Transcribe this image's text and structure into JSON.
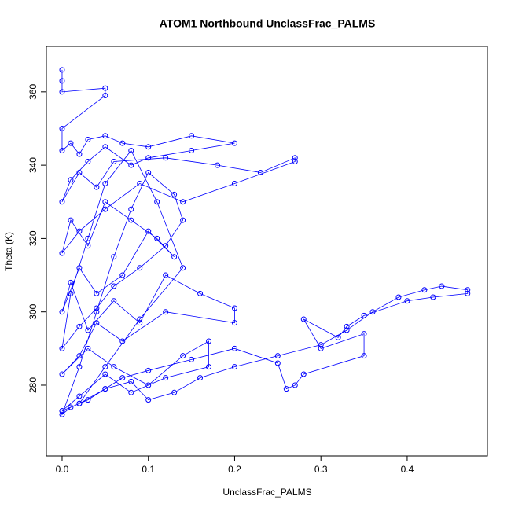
{
  "chart_data": {
    "type": "line",
    "markers": "open-circle",
    "title": "ATOM1 Northbound UnclassFrac_PALMS",
    "x_label": "UnclassFrac_PALMS",
    "y_label": "Theta (K)",
    "color": "#0000ff",
    "xlim": [
      -0.0182,
      0.493
    ],
    "ylim": [
      260.7,
      372.4
    ],
    "xticks": [
      {
        "value": 0,
        "label": "0.0"
      },
      0.1,
      0.2,
      0.3,
      0.4
    ],
    "yticks": [
      280,
      300,
      320,
      340,
      360
    ],
    "x": [
      0,
      0,
      0,
      0.05,
      0.05,
      0,
      0,
      0.01,
      0.02,
      0.03,
      0.05,
      0.07,
      0.1,
      0.15,
      0.2,
      0.15,
      0.1,
      0.08,
      0.05,
      0.03,
      0.01,
      0,
      0.02,
      0.04,
      0.06,
      0.12,
      0.18,
      0.23,
      0.27,
      0.27,
      0.2,
      0.14,
      0.09,
      0.05,
      0.02,
      0,
      0.01,
      0.03,
      0.05,
      0.08,
      0.11,
      0.13,
      0.1,
      0.07,
      0.04,
      0.02,
      0,
      0.01,
      0.03,
      0.06,
      0.09,
      0.12,
      0.16,
      0.2,
      0.2,
      0.12,
      0.07,
      0.04,
      0.02,
      0,
      0.03,
      0.06,
      0.1,
      0.14,
      0.17,
      0.17,
      0.12,
      0.08,
      0.05,
      0.02,
      0,
      0.02,
      0.05,
      0.08,
      0.1,
      0.13,
      0.16,
      0.2,
      0.25,
      0.3,
      0.33,
      0.36,
      0.39,
      0.42,
      0.44,
      0.47,
      0.47,
      0.43,
      0.4,
      0.35,
      0.33,
      0.32,
      0.28,
      0.3,
      0.35,
      0.35,
      0.28,
      0.27,
      0.26,
      0.25,
      0.2,
      0.15,
      0.1,
      0.07,
      0.05,
      0.03,
      0.01,
      0,
      0.02,
      0.04,
      0.06,
      0.08,
      0.1,
      0.13,
      0.14,
      0.12,
      0.09,
      0.06,
      0.04,
      0.02,
      0,
      0.01,
      0.03,
      0.05,
      0.08,
      0.11,
      0.14,
      0.09,
      0.05,
      0.02,
      0
    ],
    "values": [
      366,
      363,
      360,
      361,
      359,
      350,
      344,
      346,
      343,
      347,
      348,
      346,
      345,
      348,
      346,
      344,
      342,
      340,
      345,
      341,
      336,
      330,
      338,
      334,
      341,
      342,
      340,
      338,
      342,
      341,
      335,
      330,
      335,
      328,
      322,
      316,
      325,
      318,
      330,
      325,
      320,
      315,
      322,
      310,
      305,
      312,
      300,
      308,
      295,
      303,
      297,
      310,
      305,
      301,
      297,
      300,
      292,
      297,
      288,
      283,
      290,
      285,
      280,
      288,
      292,
      285,
      282,
      278,
      283,
      277,
      273,
      275,
      279,
      281,
      276,
      278,
      282,
      285,
      288,
      291,
      295,
      300,
      304,
      306,
      307,
      306,
      305,
      304,
      303,
      299,
      296,
      293,
      298,
      290,
      294,
      288,
      283,
      280,
      279,
      286,
      290,
      287,
      284,
      282,
      279,
      276,
      274,
      272,
      285,
      300,
      315,
      328,
      338,
      332,
      325,
      318,
      312,
      307,
      301,
      296,
      290,
      305,
      320,
      335,
      344,
      330,
      312,
      298,
      285,
      275,
      273
    ]
  }
}
